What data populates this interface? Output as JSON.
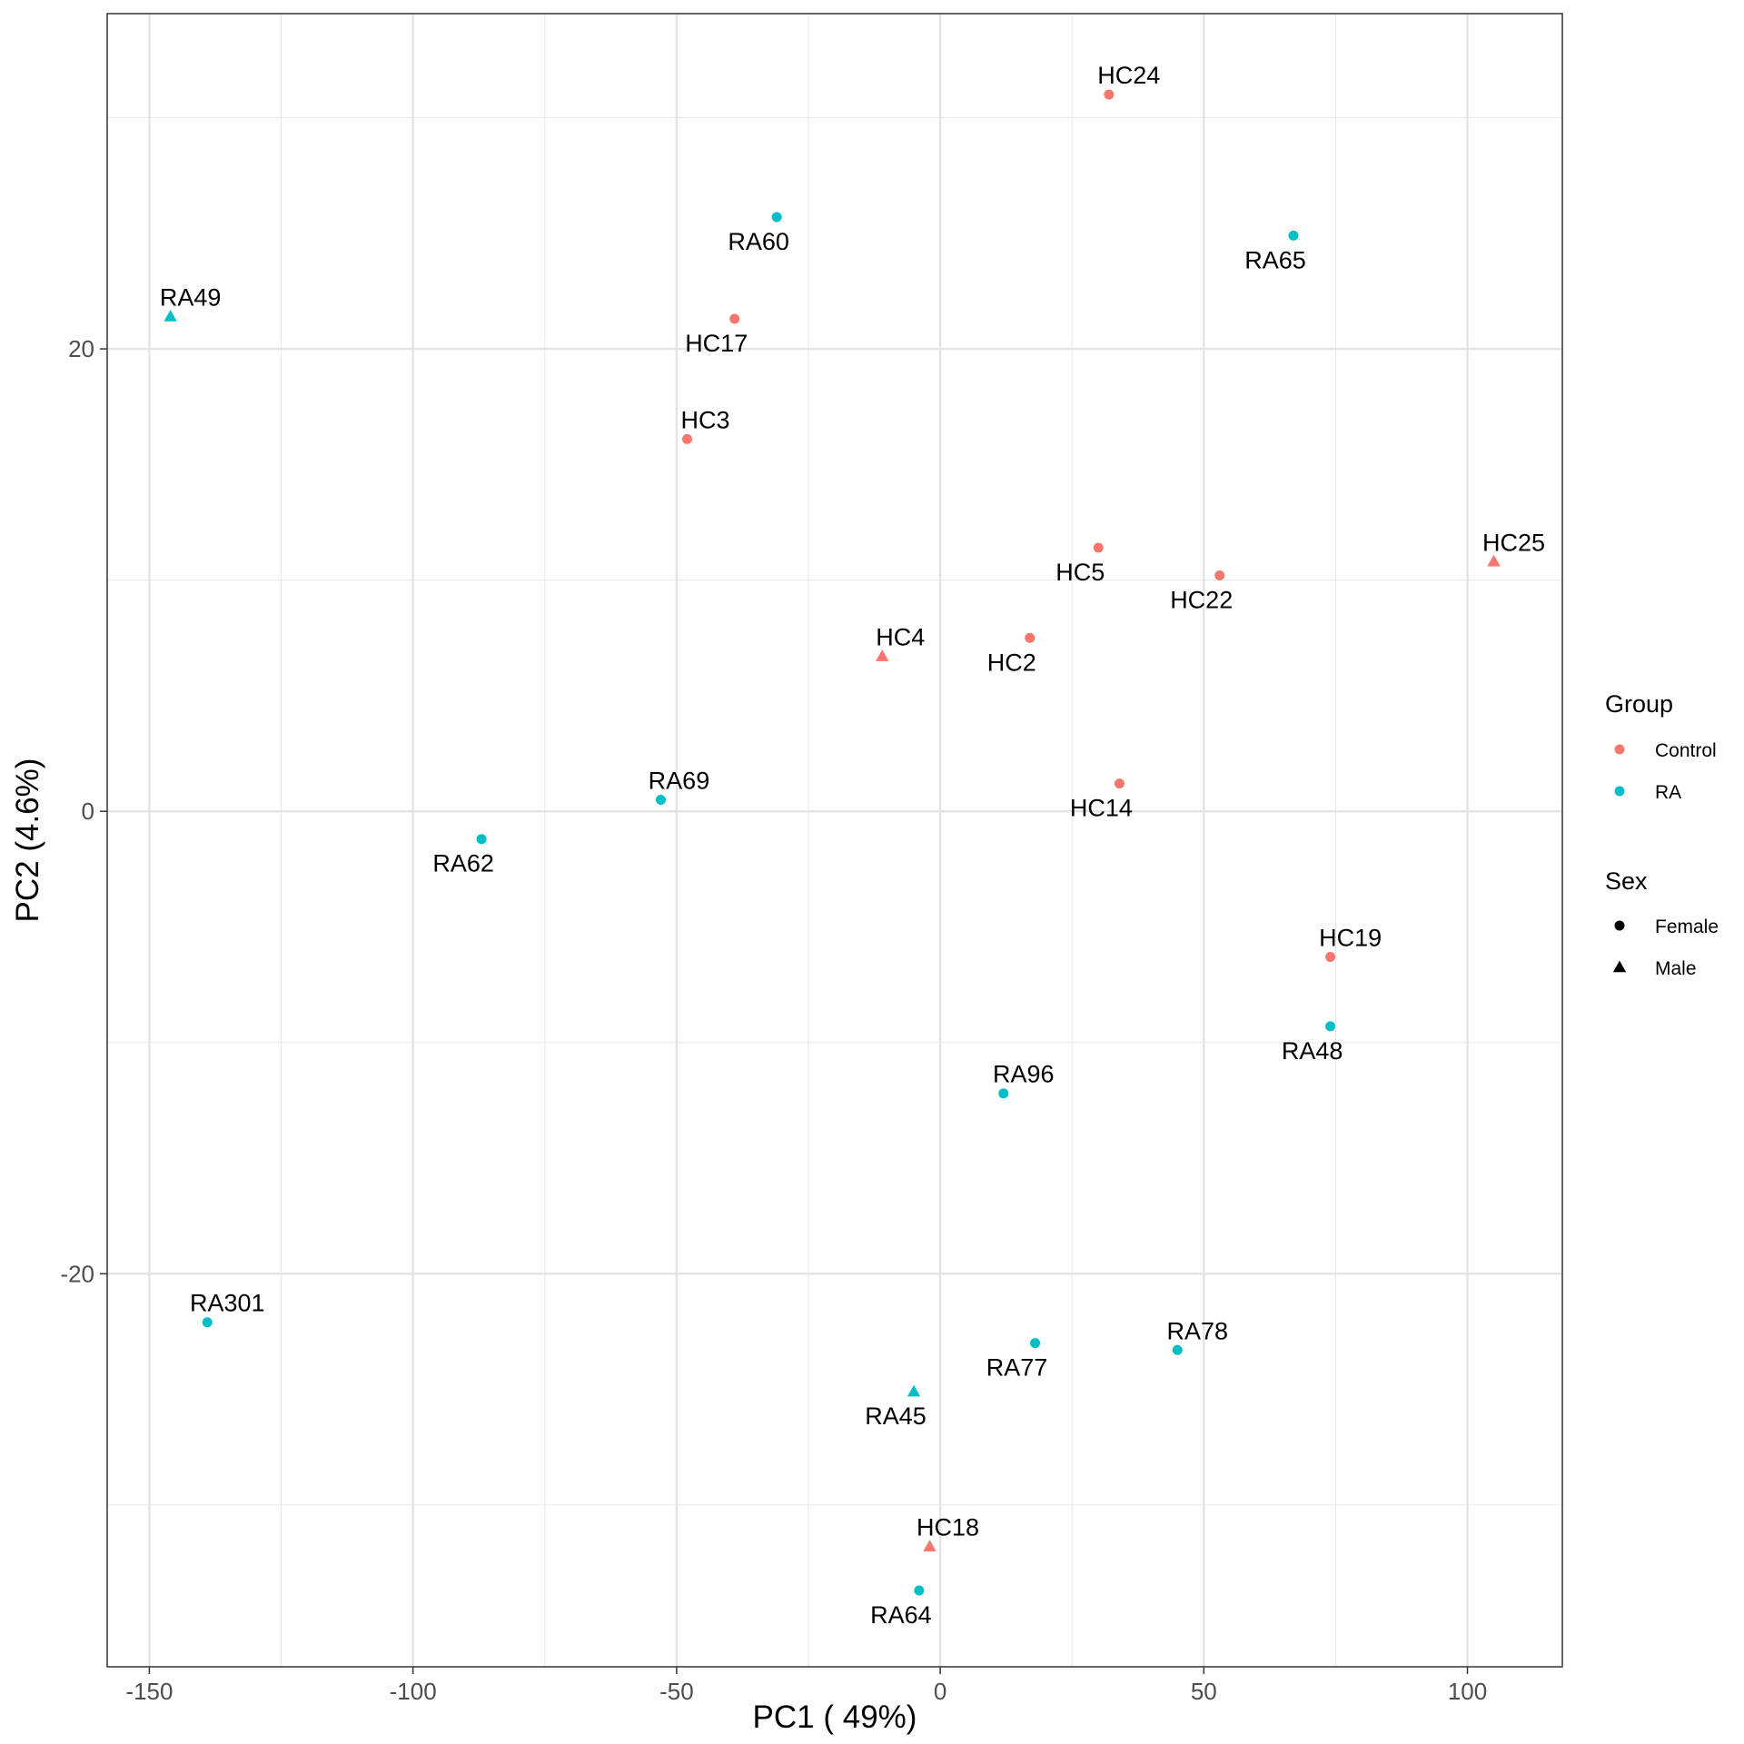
{
  "chart_data": {
    "type": "scatter",
    "xlabel": "PC1 ( 49%)",
    "ylabel": "PC2 (4.6%)",
    "xlim": [
      -158,
      118
    ],
    "ylim": [
      -37,
      34.5
    ],
    "x_ticks": [
      -150,
      -100,
      -50,
      0,
      50,
      100
    ],
    "y_ticks": [
      -20,
      0,
      20
    ],
    "grid": true,
    "legend_position": "right",
    "legend": {
      "group": {
        "title": "Group",
        "items": [
          {
            "label": "Control",
            "color": "#F8766D"
          },
          {
            "label": "RA",
            "color": "#00BFC4"
          }
        ]
      },
      "sex": {
        "title": "Sex",
        "items": [
          {
            "label": "Female",
            "shape": "circle"
          },
          {
            "label": "Male",
            "shape": "triangle"
          }
        ]
      }
    },
    "points": [
      {
        "label": "HC24",
        "x": 32,
        "y": 31,
        "group": "Control",
        "sex": "Female"
      },
      {
        "label": "RA60",
        "x": -31,
        "y": 25.7,
        "group": "RA",
        "sex": "Female"
      },
      {
        "label": "RA65",
        "x": 67,
        "y": 24.9,
        "group": "RA",
        "sex": "Female"
      },
      {
        "label": "RA49",
        "x": -146,
        "y": 21.4,
        "group": "RA",
        "sex": "Male"
      },
      {
        "label": "HC17",
        "x": -39,
        "y": 21.3,
        "group": "Control",
        "sex": "Female"
      },
      {
        "label": "HC3",
        "x": -48,
        "y": 16.1,
        "group": "Control",
        "sex": "Female"
      },
      {
        "label": "HC5",
        "x": 30,
        "y": 11.4,
        "group": "Control",
        "sex": "Female"
      },
      {
        "label": "HC25",
        "x": 105,
        "y": 10.8,
        "group": "Control",
        "sex": "Male"
      },
      {
        "label": "HC22",
        "x": 53,
        "y": 10.2,
        "group": "Control",
        "sex": "Female"
      },
      {
        "label": "HC2",
        "x": 17,
        "y": 7.5,
        "group": "Control",
        "sex": "Female"
      },
      {
        "label": "HC4",
        "x": -11,
        "y": 6.7,
        "group": "Control",
        "sex": "Male"
      },
      {
        "label": "HC14",
        "x": 34,
        "y": 1.2,
        "group": "Control",
        "sex": "Female"
      },
      {
        "label": "RA69",
        "x": -53,
        "y": 0.5,
        "group": "RA",
        "sex": "Female"
      },
      {
        "label": "RA62",
        "x": -87,
        "y": -1.2,
        "group": "RA",
        "sex": "Female"
      },
      {
        "label": "HC19",
        "x": 74,
        "y": -6.3,
        "group": "Control",
        "sex": "Female"
      },
      {
        "label": "RA48",
        "x": 74,
        "y": -9.3,
        "group": "RA",
        "sex": "Female"
      },
      {
        "label": "RA96",
        "x": 12,
        "y": -12.2,
        "group": "RA",
        "sex": "Female"
      },
      {
        "label": "RA301",
        "x": -139,
        "y": -22.1,
        "group": "RA",
        "sex": "Female"
      },
      {
        "label": "RA77",
        "x": 18,
        "y": -23,
        "group": "RA",
        "sex": "Female"
      },
      {
        "label": "RA78",
        "x": 45,
        "y": -23.3,
        "group": "RA",
        "sex": "Female"
      },
      {
        "label": "RA45",
        "x": -5,
        "y": -25.1,
        "group": "RA",
        "sex": "Male"
      },
      {
        "label": "HC18",
        "x": -2,
        "y": -31.8,
        "group": "Control",
        "sex": "Male"
      },
      {
        "label": "RA64",
        "x": -4,
        "y": -33.7,
        "group": "RA",
        "sex": "Female"
      }
    ]
  }
}
